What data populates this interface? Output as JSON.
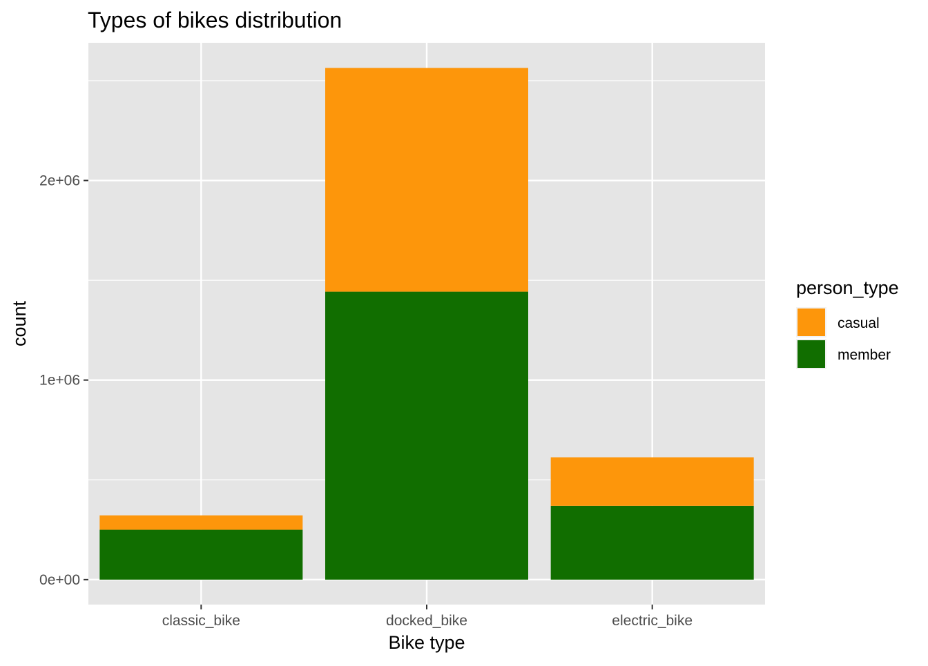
{
  "chart_data": {
    "type": "bar",
    "stacked": true,
    "title": "Types of bikes distribution",
    "xlabel": "Bike type",
    "ylabel": "count",
    "categories": [
      "classic_bike",
      "docked_bike",
      "electric_bike"
    ],
    "series": [
      {
        "name": "member",
        "color": "#116e00",
        "values": [
          250000,
          1443000,
          370000
        ]
      },
      {
        "name": "casual",
        "color": "#fd960b",
        "values": [
          72000,
          1121000,
          243000
        ]
      }
    ],
    "ylim": [
      -125000,
      2690000
    ],
    "yticks": [
      {
        "value": 0,
        "label": "0e+00"
      },
      {
        "value": 1000000,
        "label": "1e+06"
      },
      {
        "value": 2000000,
        "label": "2e+06"
      }
    ],
    "yminor": [
      500000,
      1500000,
      2500000
    ],
    "grid": true,
    "legend": {
      "title": "person_type",
      "position": "right",
      "items": [
        {
          "label": "casual",
          "color": "#fd960b"
        },
        {
          "label": "member",
          "color": "#116e00"
        }
      ]
    },
    "panel_background": "#e5e5e5",
    "grid_color": "#ffffff"
  }
}
